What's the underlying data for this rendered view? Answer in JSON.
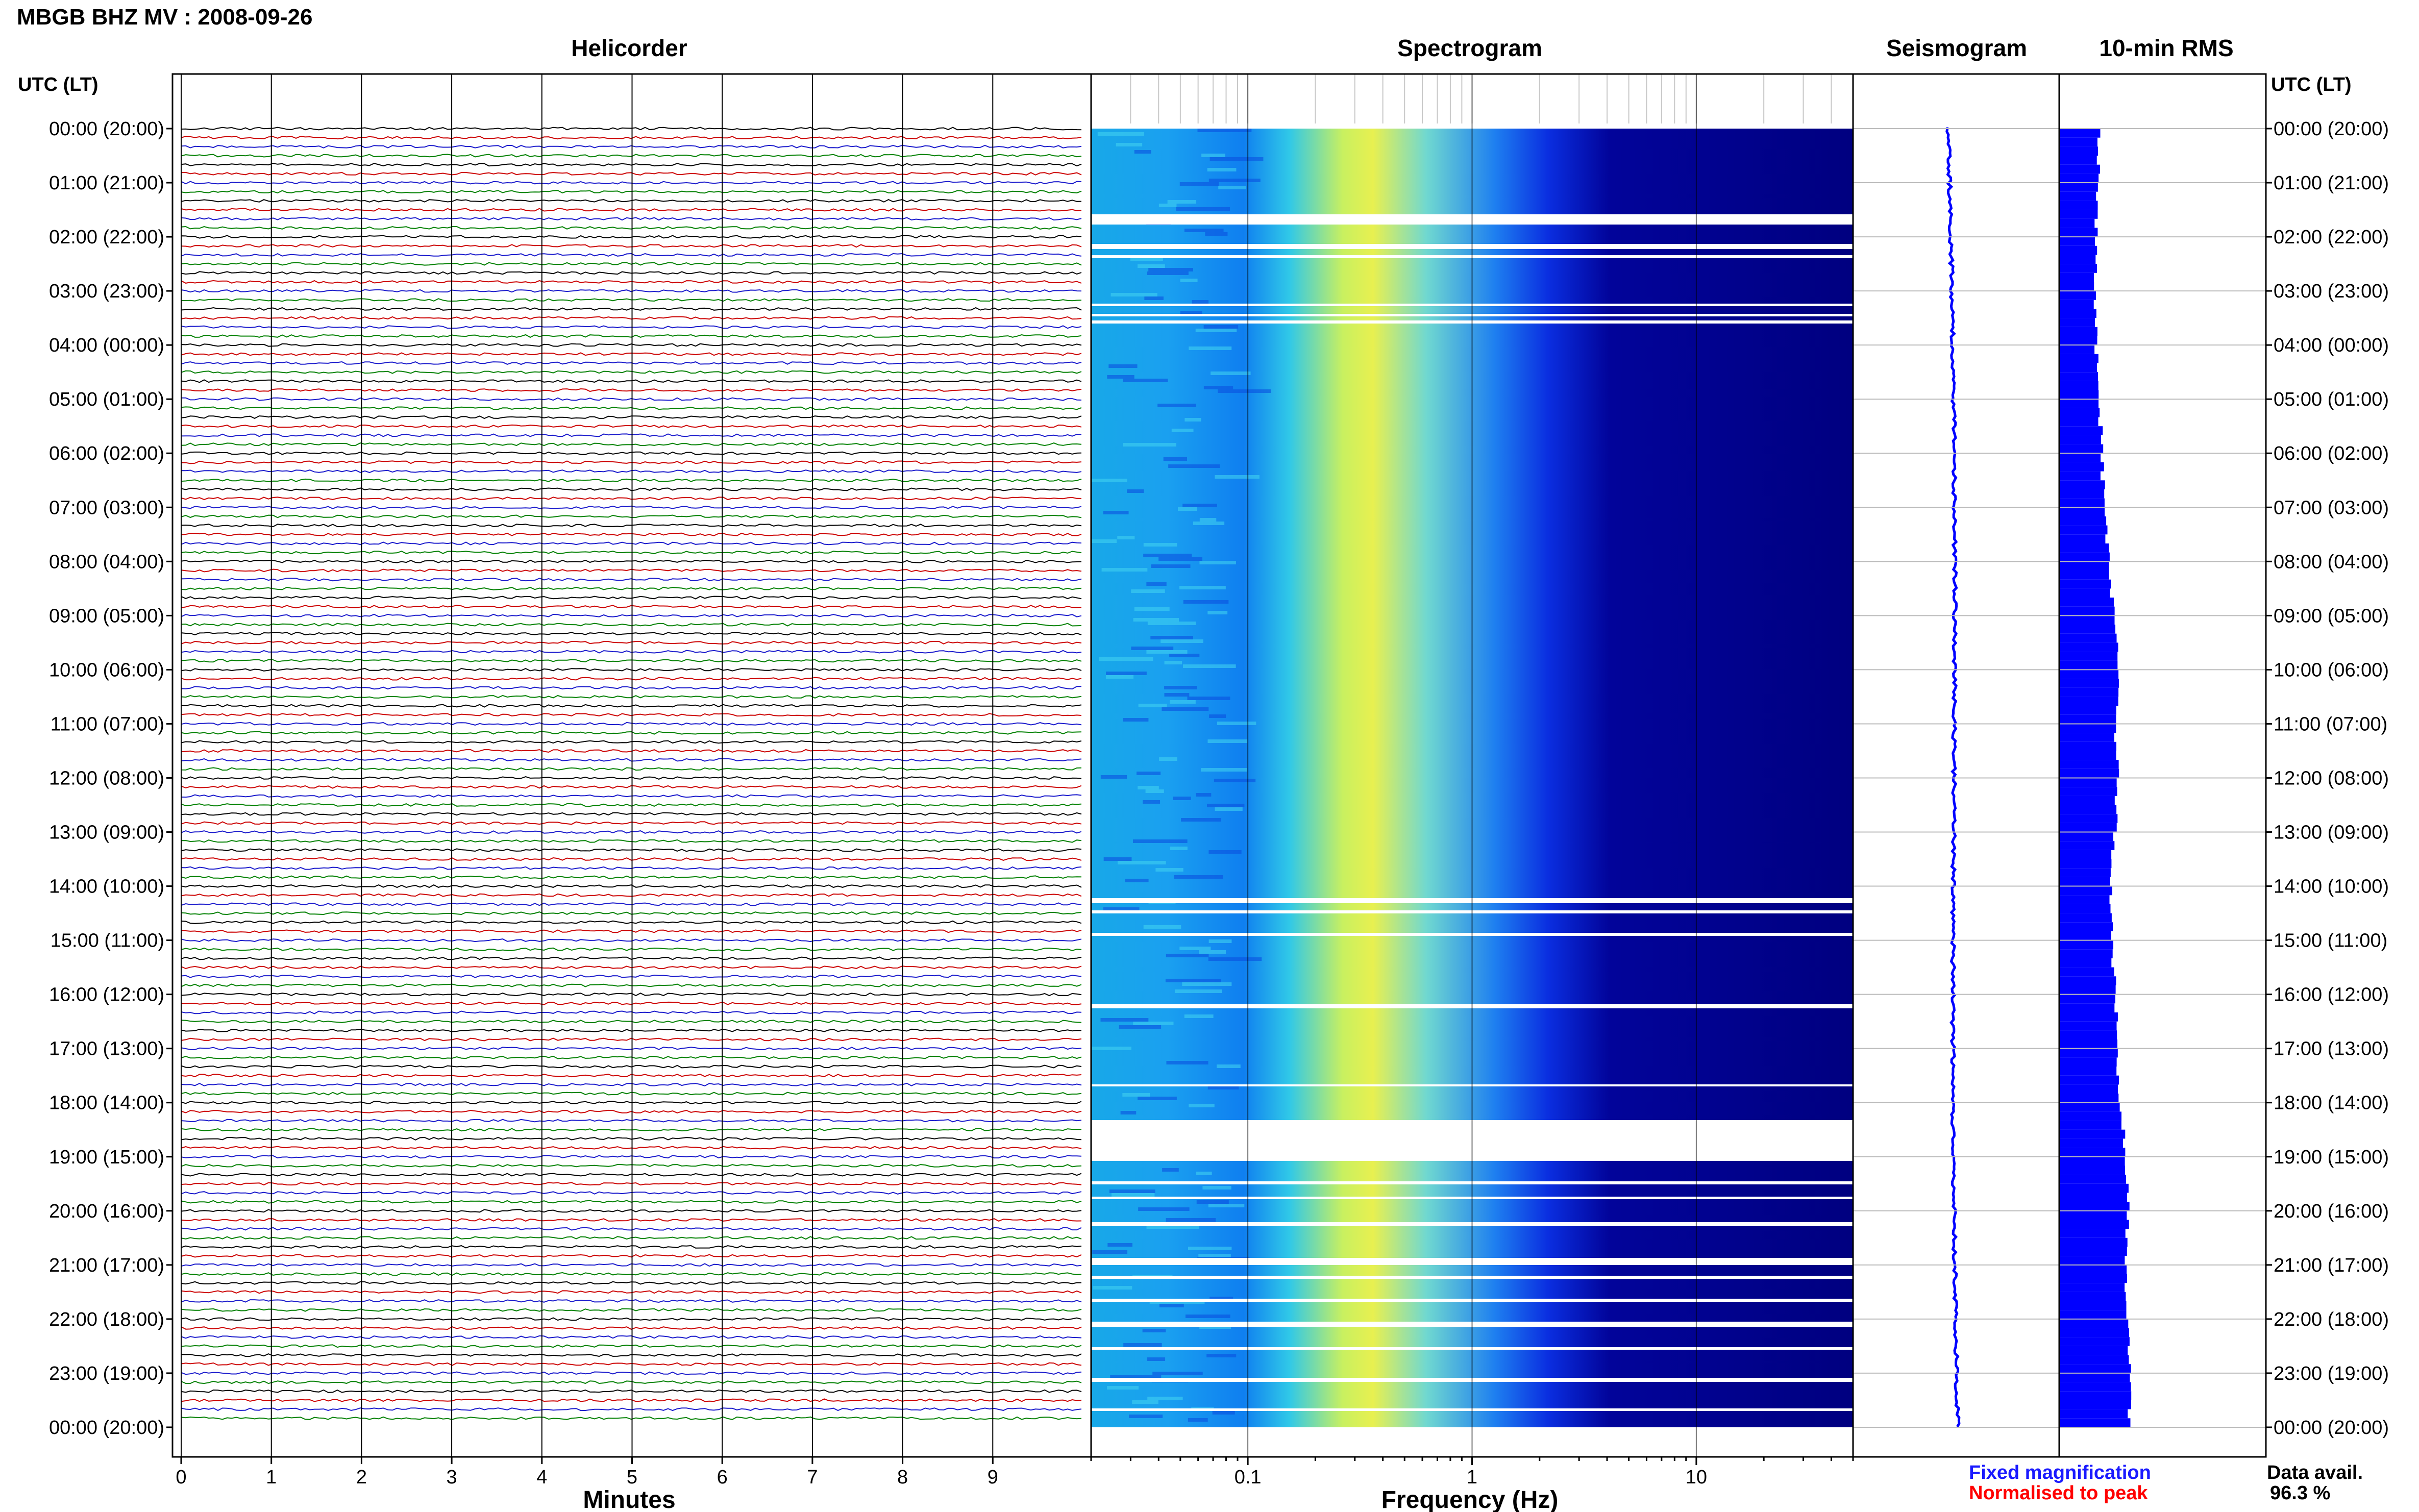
{
  "title": "MBGB BHZ MV : 2008-09-26",
  "panels": {
    "helicorder": "Helicorder",
    "spectrogram": "Spectrogram",
    "seismogram": "Seismogram",
    "rms": "10-min RMS"
  },
  "utc_header": "UTC (LT)",
  "time_labels": [
    "00:00 (20:00)",
    "01:00 (21:00)",
    "02:00 (22:00)",
    "03:00 (23:00)",
    "04:00 (00:00)",
    "05:00 (01:00)",
    "06:00 (02:00)",
    "07:00 (03:00)",
    "08:00 (04:00)",
    "09:00 (05:00)",
    "10:00 (06:00)",
    "11:00 (07:00)",
    "12:00 (08:00)",
    "13:00 (09:00)",
    "14:00 (10:00)",
    "15:00 (11:00)",
    "16:00 (12:00)",
    "17:00 (13:00)",
    "18:00 (14:00)",
    "19:00 (15:00)",
    "20:00 (16:00)",
    "21:00 (17:00)",
    "22:00 (18:00)",
    "23:00 (19:00)",
    "00:00 (20:00)"
  ],
  "x_axes": {
    "helicorder_label": "Minutes",
    "helicorder_ticks": [
      "0",
      "1",
      "2",
      "3",
      "4",
      "5",
      "6",
      "7",
      "8",
      "9"
    ],
    "spectrogram_label": "Frequency (Hz)",
    "spectrogram_ticks": [
      "0.1",
      "1",
      "10"
    ]
  },
  "legend": {
    "fixed": "Fixed magnification",
    "normalised": "Normalised to peak",
    "fixed_color": "#1a1aff",
    "normalised_color": "#ff0000"
  },
  "availability": {
    "label": "Data avail.",
    "value": "96.3 %"
  },
  "chart_data": {
    "type": "heatmap",
    "title": "MBGB BHZ MV : 2008-09-26",
    "helicorder": {
      "x_range_minutes": [
        0,
        10
      ],
      "lines_per_hour": 6,
      "hours": 24,
      "trace_colors": [
        "#000000",
        "#cc0000",
        "#1a1acc",
        "#008000"
      ]
    },
    "spectrogram": {
      "x_scale": "log",
      "x_range_hz": [
        0.02,
        50
      ],
      "colormap": [
        "#00007a",
        "#0000ff",
        "#0080ff",
        "#00ffff",
        "#80ff80",
        "#ffff00"
      ]
    },
    "rms_color": "#0000ff",
    "rms_hourly_relative": [
      0.55,
      0.52,
      0.5,
      0.48,
      0.5,
      0.55,
      0.58,
      0.62,
      0.68,
      0.75,
      0.82,
      0.78,
      0.8,
      0.76,
      0.7,
      0.72,
      0.78,
      0.8,
      0.85,
      0.92,
      0.95,
      0.9,
      0.94,
      0.98,
      0.96
    ],
    "data_availability_percent": 96.3
  }
}
